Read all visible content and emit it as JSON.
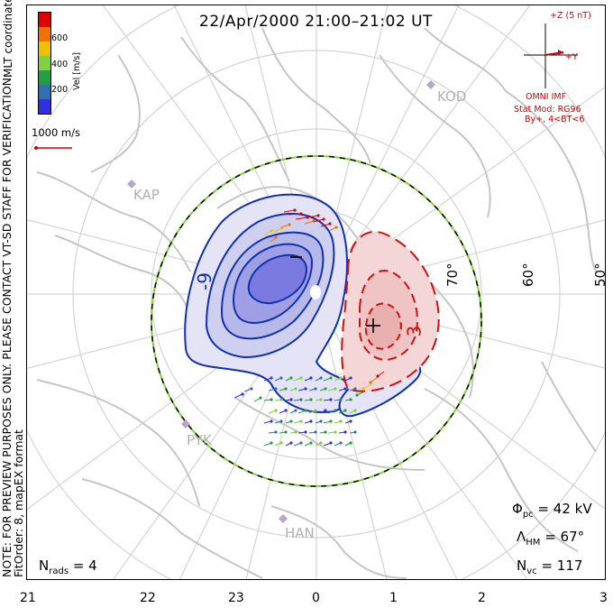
{
  "title": "22/Apr/2000 21:00–21:02 UT",
  "vertical_note_1": "NOTE: FOR PREVIEW PURPOSES ONLY. PLEASE CONTACT VT-SD STAFF FOR VERIFICATION.",
  "vertical_note_2": "FitOrder: 8, mapEX format",
  "coordinate_system": "MLT coordinates",
  "colorbar": {
    "unit_label": "Vel [m/s]",
    "ticks": [
      "600",
      "400",
      "200"
    ],
    "colors": [
      "#e00000",
      "#f07000",
      "#f0c000",
      "#80d040",
      "#20a040",
      "#3070b0",
      "#3030e0"
    ]
  },
  "reference_vector_label": "1000 m/s",
  "imf": {
    "z_label": "+Z (5 nT)",
    "y_label": "+Y",
    "source": "OMNI IMF",
    "model_line_1": "Stat Mod: RG96",
    "model_line_2": "By+, 4<BT<6"
  },
  "stats": {
    "phi_pc_label": "Φpc",
    "phi_pc_value": "= 42 kV",
    "lambda_hm_label": "ΛHM",
    "lambda_hm_value": "= 67°",
    "n_vc_label": "Nvc",
    "n_vc_value": "= 117",
    "n_rads_label": "Nrads",
    "n_rads_value": "= 4"
  },
  "latitude_labels": [
    "70°",
    "60°",
    "50°"
  ],
  "stations": [
    "KOD",
    "KAP",
    "PYK",
    "HAN"
  ],
  "contour_labels": {
    "negative": "-9",
    "positive": "3"
  },
  "polarity_marks": {
    "minus": "−",
    "plus": "+"
  },
  "mlt_ticks": [
    "21",
    "22",
    "23",
    "0",
    "1",
    "2",
    "3"
  ],
  "colors": {
    "negative_contour": "#1030b0",
    "positive_contour": "#d01010",
    "negative_fill": "#7a7ae0",
    "positive_fill": "#f0b0b0",
    "coastline": "#c8c8c8",
    "grid": "#d0d0d0",
    "hm_boundary": "#80d040",
    "imf_vector": "#d00000"
  }
}
